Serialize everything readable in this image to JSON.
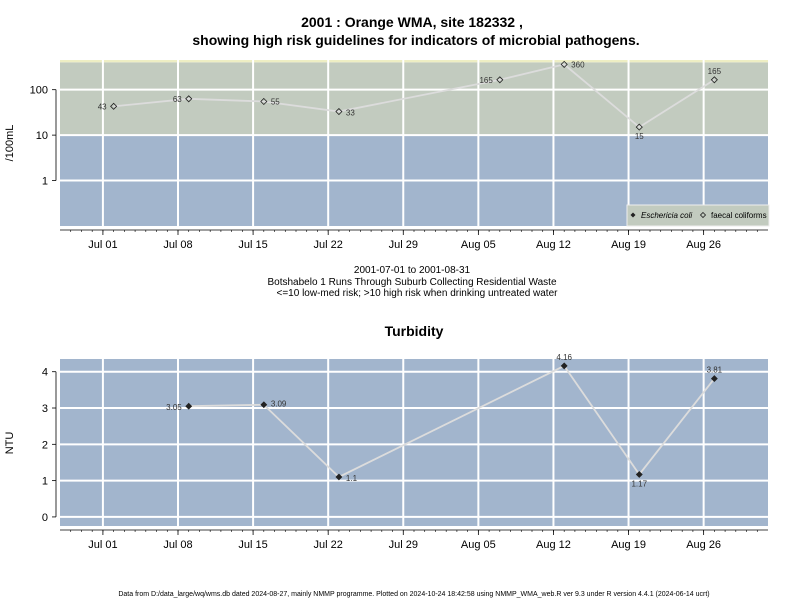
{
  "titles": {
    "main_line1": "2001 : Orange WMA, site 182332 ,",
    "main_line2": "showing high risk guidelines for indicators of microbial pathogens."
  },
  "subtitle": {
    "date_range": "2001-07-01 to 2001-08-31",
    "site_desc": "Botshabelo 1 Runs Through Suburb Collecting Residential Waste",
    "risk_note": "<=10 low-med risk; >10 high risk when drinking untreated water"
  },
  "footer": "Data from D:/data_large/wq/wms.db dated 2024-08-27, mainly NMMP programme. Plotted on 2024-10-24 18:42:58 using NMMP_WMA_web.R ver 9.3 under R version 4.4.1 (2024-06-14 ucrt)",
  "colors": {
    "low_risk": "#a2b5cd",
    "high_risk": "#c2cbbf",
    "top_band": "#eeeec4",
    "grid": "#ffffff",
    "line": "#dcdcdc"
  },
  "chart_data": [
    {
      "type": "scatter",
      "ylabel": "/100mL",
      "yscale": "log",
      "yticks": [
        1,
        10,
        100
      ],
      "ylim": [
        0.1,
        450
      ],
      "risk_threshold": 10,
      "high_limit": 400,
      "xlim": [
        "2001-06-27",
        "2001-09-01"
      ],
      "xticks": [
        "Jul 01",
        "Jul 08",
        "Jul 15",
        "Jul 22",
        "Jul 29",
        "Aug 05",
        "Aug 12",
        "Aug 19",
        "Aug 26"
      ],
      "legend": {
        "position": "bottom-right",
        "entries": [
          "Eschericia coli",
          "faecal coliforms"
        ]
      },
      "series": [
        {
          "name": "faecal coliforms",
          "marker": "open-diamond",
          "x": [
            "2001-07-02",
            "2001-07-09",
            "2001-07-16",
            "2001-07-23",
            "2001-08-07",
            "2001-08-13",
            "2001-08-20",
            "2001-08-27"
          ],
          "y": [
            43,
            63,
            55,
            33,
            165,
            360,
            15,
            165
          ],
          "labels": [
            "43",
            "63",
            "55",
            "33",
            "165",
            "360",
            "15",
            "165"
          ]
        }
      ]
    },
    {
      "type": "line",
      "title": "Turbidity",
      "ylabel": "NTU",
      "ylim": [
        -0.25,
        4.35
      ],
      "yticks": [
        0,
        1,
        2,
        3,
        4
      ],
      "xlim": [
        "2001-06-27",
        "2001-09-01"
      ],
      "xticks": [
        "Jul 01",
        "Jul 08",
        "Jul 15",
        "Jul 22",
        "Jul 29",
        "Aug 05",
        "Aug 12",
        "Aug 19",
        "Aug 26"
      ],
      "series": [
        {
          "marker": "filled-diamond",
          "x": [
            "2001-07-09",
            "2001-07-16",
            "2001-07-23",
            "2001-08-13",
            "2001-08-20",
            "2001-08-27"
          ],
          "y": [
            3.05,
            3.09,
            1.1,
            4.16,
            1.17,
            3.81
          ],
          "labels": [
            "3.05",
            "3.09",
            "1.1",
            "4.16",
            "1.17",
            "3.81"
          ]
        }
      ]
    }
  ]
}
